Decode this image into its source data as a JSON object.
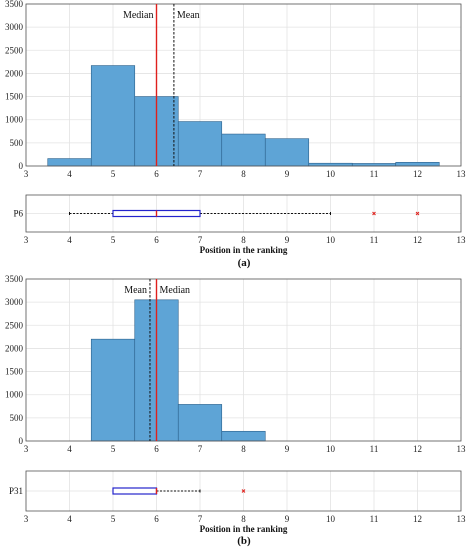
{
  "colors": {
    "bar_fill": "#5ea4d6",
    "bar_stroke": "#2a5f8a",
    "median_line": "#e0201c",
    "mean_line": "#111111",
    "box_stroke": "#2424cc",
    "outlier": "#e0201c",
    "grid": "#e3e3e3",
    "axis": "#555555"
  },
  "chart_data": [
    {
      "type": "bar",
      "panel": "a",
      "bin_edges": [
        3.5,
        4.5,
        5.5,
        6.5,
        7.5,
        8.5,
        9.5,
        10.5,
        11.5,
        12.5
      ],
      "values": [
        160,
        2170,
        1500,
        960,
        690,
        590,
        60,
        55,
        80
      ],
      "xlim": [
        3,
        13
      ],
      "ylim": [
        0,
        3500
      ],
      "xticks": [
        3,
        4,
        5,
        6,
        7,
        8,
        9,
        10,
        11,
        12,
        13
      ],
      "yticks": [
        0,
        500,
        1000,
        1500,
        2000,
        2500,
        3000,
        3500
      ],
      "median": 6,
      "mean": 6.4,
      "median_label": "Median",
      "mean_label": "Mean",
      "grid": true
    },
    {
      "type": "boxplot",
      "panel": "a",
      "category": "P6",
      "whisker_low": 4,
      "q1": 5,
      "median": 6,
      "q3": 7,
      "whisker_high": 10,
      "outliers": [
        11,
        12
      ],
      "xlim": [
        3,
        13
      ],
      "xticks": [
        3,
        4,
        5,
        6,
        7,
        8,
        9,
        10,
        11,
        12,
        13
      ],
      "xlabel": "Position in the ranking",
      "grid": true
    },
    {
      "type": "bar",
      "panel": "b",
      "bin_edges": [
        4.5,
        5.5,
        6.5,
        7.5,
        8.5
      ],
      "values": [
        2200,
        3050,
        790,
        210
      ],
      "xlim": [
        3,
        13
      ],
      "ylim": [
        0,
        3500
      ],
      "xticks": [
        3,
        4,
        5,
        6,
        7,
        8,
        9,
        10,
        11,
        12,
        13
      ],
      "yticks": [
        0,
        500,
        1000,
        1500,
        2000,
        2500,
        3000,
        3500
      ],
      "median": 6,
      "mean": 5.85,
      "median_label": "Median",
      "mean_label": "Mean",
      "grid": true
    },
    {
      "type": "boxplot",
      "panel": "b",
      "category": "P31",
      "whisker_low": 5,
      "q1": 5,
      "median": 6,
      "q3": 6,
      "whisker_high": 7,
      "outliers": [
        8
      ],
      "xlim": [
        3,
        13
      ],
      "xticks": [
        3,
        4,
        5,
        6,
        7,
        8,
        9,
        10,
        11,
        12,
        13
      ],
      "xlabel": "Position in the ranking",
      "grid": true
    }
  ],
  "captions": [
    "(a)",
    "(b)"
  ]
}
